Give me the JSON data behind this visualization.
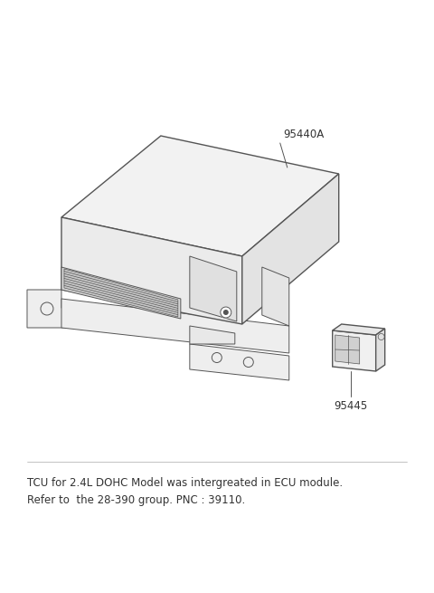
{
  "background_color": "#ffffff",
  "line_color": "#555555",
  "lw_main": 1.0,
  "lw_thin": 0.7,
  "label_95440A": "95440A",
  "label_95445": "95445",
  "footnote_line1": "TCU for 2.4L DOHC Model was intergreated in ECU module.",
  "footnote_line2": "Refer to  the 28-390 group. PNC : 39110.",
  "footnote_fontsize": 8.5
}
